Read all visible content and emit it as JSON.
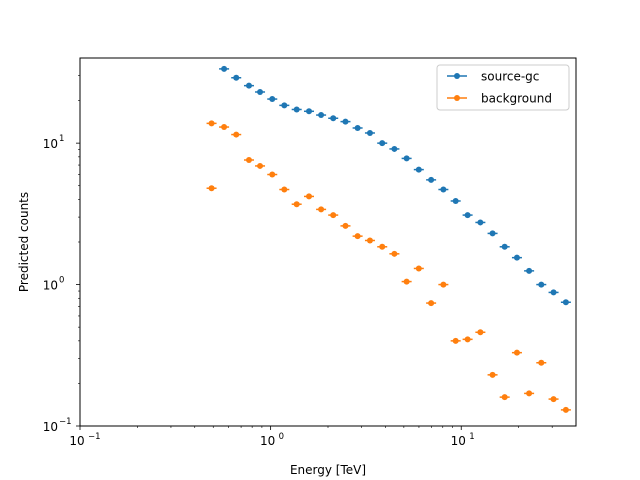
{
  "chart_data": {
    "type": "scatter",
    "title": "",
    "xlabel": "Energy [TeV]",
    "ylabel": "Predicted counts",
    "xscale": "log",
    "yscale": "log",
    "xlim": [
      0.1,
      40
    ],
    "ylim": [
      0.1,
      40
    ],
    "x_tick_values": [
      0.1,
      1,
      10
    ],
    "x_tick_labels": [
      "10",
      "10",
      "10"
    ],
    "x_tick_exponents": [
      "−1",
      "0",
      "1"
    ],
    "y_tick_values": [
      0.1,
      1,
      10
    ],
    "y_tick_labels": [
      "10",
      "10",
      "10"
    ],
    "y_tick_exponents": [
      "−1",
      "0",
      "1"
    ],
    "grid": false,
    "legend_position": "top-right",
    "series": [
      {
        "name": "source-gc",
        "color": "#1f77b4",
        "x": [
          0.57,
          0.66,
          0.77,
          0.88,
          1.02,
          1.18,
          1.37,
          1.59,
          1.84,
          2.13,
          2.47,
          2.86,
          3.32,
          3.85,
          4.46,
          5.17,
          5.99,
          6.95,
          8.06,
          9.35,
          10.8,
          12.6,
          14.6,
          16.9,
          19.6,
          22.7,
          26.3,
          30.5,
          35.4
        ],
        "y": [
          33.5,
          29.0,
          25.5,
          23.0,
          20.5,
          18.5,
          17.3,
          16.8,
          15.8,
          15.0,
          14.2,
          12.8,
          11.8,
          10.0,
          9.1,
          7.8,
          6.5,
          5.5,
          4.7,
          3.9,
          3.1,
          2.75,
          2.3,
          1.85,
          1.55,
          1.25,
          1.0,
          0.88,
          0.75
        ]
      },
      {
        "name": "background",
        "color": "#ff7f0e",
        "x": [
          0.49,
          0.49,
          0.57,
          0.66,
          0.77,
          0.88,
          1.02,
          1.18,
          1.37,
          1.59,
          1.84,
          2.13,
          2.47,
          2.86,
          3.32,
          3.85,
          4.46,
          5.17,
          5.99,
          6.95,
          8.06,
          9.35,
          10.8,
          12.6,
          14.6,
          16.9,
          19.6,
          22.7,
          26.3,
          30.5,
          35.4
        ],
        "y": [
          13.8,
          4.8,
          13.0,
          11.5,
          7.6,
          6.9,
          6.0,
          4.7,
          3.7,
          4.2,
          3.4,
          3.1,
          2.6,
          2.2,
          2.05,
          1.85,
          1.65,
          1.05,
          1.3,
          0.74,
          1.0,
          0.4,
          0.41,
          0.46,
          0.23,
          0.16,
          0.33,
          0.17,
          0.28,
          0.155,
          0.13
        ]
      }
    ]
  }
}
